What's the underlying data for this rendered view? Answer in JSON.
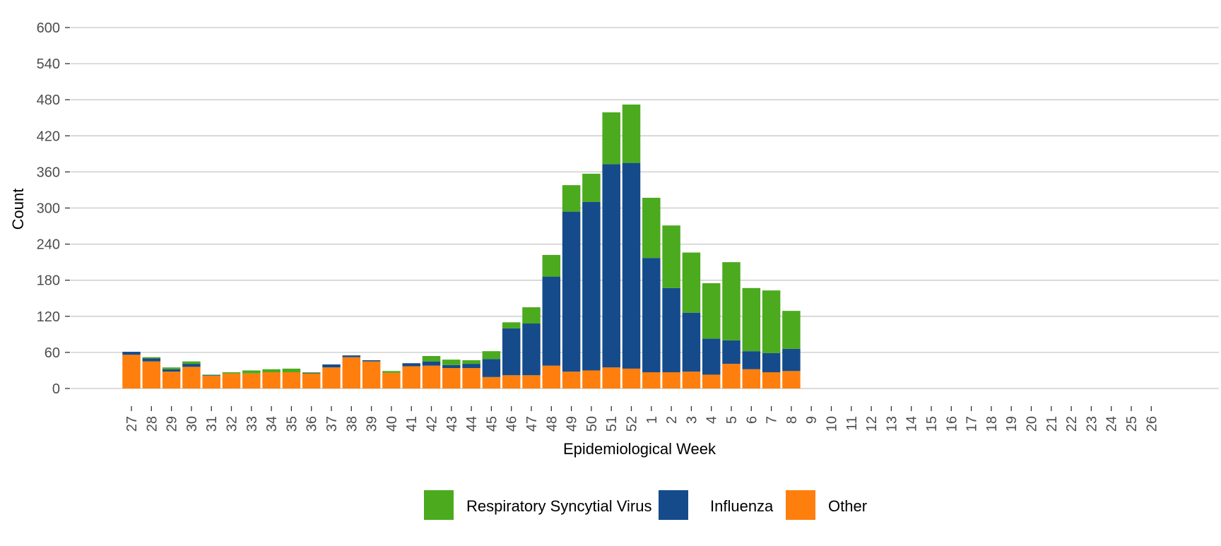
{
  "chart_data": {
    "type": "bar",
    "stacked": true,
    "title": "",
    "xlabel": "Epidemiological Week",
    "ylabel": "Count",
    "ylim": [
      0,
      600
    ],
    "yticks": [
      0,
      60,
      120,
      180,
      240,
      300,
      360,
      420,
      480,
      540,
      600
    ],
    "grid": true,
    "legend_position": "bottom",
    "categories": [
      "27",
      "28",
      "29",
      "30",
      "31",
      "32",
      "33",
      "34",
      "35",
      "36",
      "37",
      "38",
      "39",
      "40",
      "41",
      "42",
      "43",
      "44",
      "45",
      "46",
      "47",
      "48",
      "49",
      "50",
      "51",
      "52",
      "1",
      "2",
      "3",
      "4",
      "5",
      "6",
      "7",
      "8",
      "9",
      "10",
      "11",
      "12",
      "13",
      "14",
      "15",
      "16",
      "17",
      "18",
      "19",
      "20",
      "21",
      "22",
      "23",
      "24",
      "25",
      "26"
    ],
    "series": [
      {
        "name": "Other",
        "color": "#FF7F0E",
        "values": [
          56,
          45,
          28,
          36,
          21,
          25,
          25,
          27,
          27,
          25,
          35,
          52,
          45,
          26,
          37,
          38,
          34,
          34,
          19,
          22,
          22,
          38,
          28,
          30,
          35,
          33,
          27,
          27,
          28,
          23,
          41,
          32,
          27,
          29,
          0,
          0,
          0,
          0,
          0,
          0,
          0,
          0,
          0,
          0,
          0,
          0,
          0,
          0,
          0,
          0,
          0,
          0
        ]
      },
      {
        "name": "Influenza",
        "color": "#154B8B",
        "values": [
          5,
          5,
          4,
          5,
          1,
          0,
          0,
          0,
          0,
          1,
          5,
          3,
          2,
          0,
          5,
          7,
          5,
          7,
          30,
          78,
          86,
          148,
          266,
          280,
          338,
          342,
          190,
          140,
          98,
          60,
          39,
          30,
          32,
          37,
          0,
          0,
          0,
          0,
          0,
          0,
          0,
          0,
          0,
          0,
          0,
          0,
          0,
          0,
          0,
          0,
          0,
          0
        ]
      },
      {
        "name": "Respiratory Syncytial Virus",
        "color": "#4BAA1E",
        "values": [
          0,
          2,
          3,
          4,
          1,
          2,
          5,
          5,
          6,
          1,
          0,
          0,
          0,
          3,
          0,
          9,
          9,
          6,
          13,
          10,
          27,
          36,
          44,
          47,
          86,
          97,
          100,
          104,
          100,
          92,
          130,
          105,
          104,
          63,
          0,
          0,
          0,
          0,
          0,
          0,
          0,
          0,
          0,
          0,
          0,
          0,
          0,
          0,
          0,
          0,
          0,
          0
        ]
      }
    ],
    "legend_order": [
      "Respiratory Syncytial Virus",
      "Influenza",
      "Other"
    ]
  }
}
